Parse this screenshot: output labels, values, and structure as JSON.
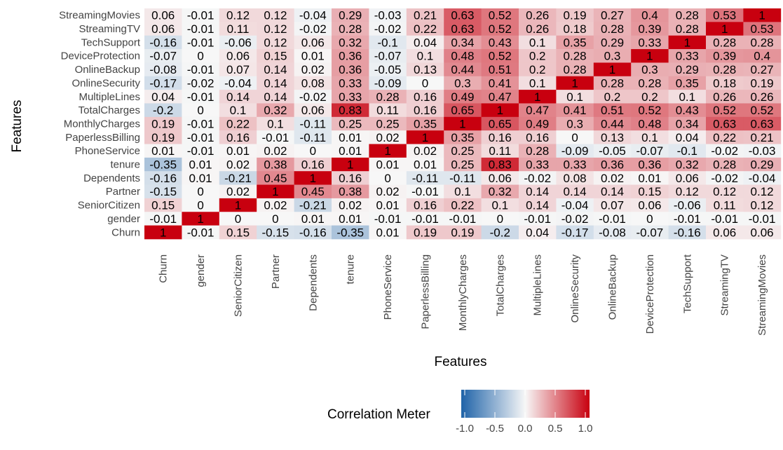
{
  "chart_data": {
    "type": "heatmap",
    "xlabel": "Features",
    "ylabel": "Features",
    "legend_title": "Correlation Meter",
    "legend_ticks": [
      "-1.0",
      "-0.5",
      "0.0",
      "0.5",
      "1.0"
    ],
    "legend_range": [
      -1,
      1
    ],
    "legend_position": "bottom",
    "colors": {
      "low": "#1f63a8",
      "mid": "#f7f7f7",
      "high": "#c8000f"
    },
    "x_categories": [
      "Churn",
      "gender",
      "SeniorCitizen",
      "Partner",
      "Dependents",
      "tenure",
      "PhoneService",
      "PaperlessBilling",
      "MonthlyCharges",
      "TotalCharges",
      "MultipleLines",
      "OnlineSecurity",
      "OnlineBackup",
      "DeviceProtection",
      "TechSupport",
      "StreamingTV",
      "StreamingMovies"
    ],
    "y_categories_top_to_bottom": [
      "StreamingMovies",
      "StreamingTV",
      "TechSupport",
      "DeviceProtection",
      "OnlineBackup",
      "OnlineSecurity",
      "MultipleLines",
      "TotalCharges",
      "MonthlyCharges",
      "PaperlessBilling",
      "PhoneService",
      "tenure",
      "Dependents",
      "Partner",
      "SeniorCitizen",
      "gender",
      "Churn"
    ],
    "values": [
      [
        0.06,
        -0.01,
        0.12,
        0.12,
        -0.04,
        0.29,
        -0.03,
        0.21,
        0.63,
        0.52,
        0.26,
        0.19,
        0.27,
        0.4,
        0.28,
        0.53,
        1
      ],
      [
        0.06,
        -0.01,
        0.11,
        0.12,
        -0.02,
        0.28,
        -0.02,
        0.22,
        0.63,
        0.52,
        0.26,
        0.18,
        0.28,
        0.39,
        0.28,
        1,
        0.53
      ],
      [
        -0.16,
        -0.01,
        -0.06,
        0.12,
        0.06,
        0.32,
        -0.1,
        0.04,
        0.34,
        0.43,
        0.1,
        0.35,
        0.29,
        0.33,
        1,
        0.28,
        0.28
      ],
      [
        -0.07,
        0,
        0.06,
        0.15,
        0.01,
        0.36,
        -0.07,
        0.1,
        0.48,
        0.52,
        0.2,
        0.28,
        0.3,
        1,
        0.33,
        0.39,
        0.4
      ],
      [
        -0.08,
        -0.01,
        0.07,
        0.14,
        0.02,
        0.36,
        -0.05,
        0.13,
        0.44,
        0.51,
        0.2,
        0.28,
        1,
        0.3,
        0.29,
        0.28,
        0.27
      ],
      [
        -0.17,
        -0.02,
        -0.04,
        0.14,
        0.08,
        0.33,
        -0.09,
        0,
        0.3,
        0.41,
        0.1,
        1,
        0.28,
        0.28,
        0.35,
        0.18,
        0.19
      ],
      [
        0.04,
        -0.01,
        0.14,
        0.14,
        -0.02,
        0.33,
        0.28,
        0.16,
        0.49,
        0.47,
        1,
        0.1,
        0.2,
        0.2,
        0.1,
        0.26,
        0.26
      ],
      [
        -0.2,
        0,
        0.1,
        0.32,
        0.06,
        0.83,
        0.11,
        0.16,
        0.65,
        1,
        0.47,
        0.41,
        0.51,
        0.52,
        0.43,
        0.52,
        0.52
      ],
      [
        0.19,
        -0.01,
        0.22,
        0.1,
        -0.11,
        0.25,
        0.25,
        0.35,
        1,
        0.65,
        0.49,
        0.3,
        0.44,
        0.48,
        0.34,
        0.63,
        0.63
      ],
      [
        0.19,
        -0.01,
        0.16,
        -0.01,
        -0.11,
        0.01,
        0.02,
        1,
        0.35,
        0.16,
        0.16,
        0,
        0.13,
        0.1,
        0.04,
        0.22,
        0.21
      ],
      [
        0.01,
        -0.01,
        0.01,
        0.02,
        0,
        0.01,
        1,
        0.02,
        0.25,
        0.11,
        0.28,
        -0.09,
        -0.05,
        -0.07,
        -0.1,
        -0.02,
        -0.03
      ],
      [
        -0.35,
        0.01,
        0.02,
        0.38,
        0.16,
        1,
        0.01,
        0.01,
        0.25,
        0.83,
        0.33,
        0.33,
        0.36,
        0.36,
        0.32,
        0.28,
        0.29
      ],
      [
        -0.16,
        0.01,
        -0.21,
        0.45,
        1,
        0.16,
        0,
        -0.11,
        -0.11,
        0.06,
        -0.02,
        0.08,
        0.02,
        0.01,
        0.06,
        -0.02,
        -0.04
      ],
      [
        -0.15,
        0,
        0.02,
        1,
        0.45,
        0.38,
        0.02,
        -0.01,
        0.1,
        0.32,
        0.14,
        0.14,
        0.14,
        0.15,
        0.12,
        0.12,
        0.12
      ],
      [
        0.15,
        0,
        1,
        0.02,
        -0.21,
        0.02,
        0.01,
        0.16,
        0.22,
        0.1,
        0.14,
        -0.04,
        0.07,
        0.06,
        -0.06,
        0.11,
        0.12
      ],
      [
        -0.01,
        1,
        0,
        0,
        0.01,
        0.01,
        -0.01,
        -0.01,
        -0.01,
        0,
        -0.01,
        -0.02,
        -0.01,
        0,
        -0.01,
        -0.01,
        -0.01
      ],
      [
        1,
        -0.01,
        0.15,
        -0.15,
        -0.16,
        -0.35,
        0.01,
        0.19,
        0.19,
        -0.2,
        0.04,
        -0.17,
        -0.08,
        -0.07,
        -0.16,
        0.06,
        0.06
      ]
    ]
  }
}
